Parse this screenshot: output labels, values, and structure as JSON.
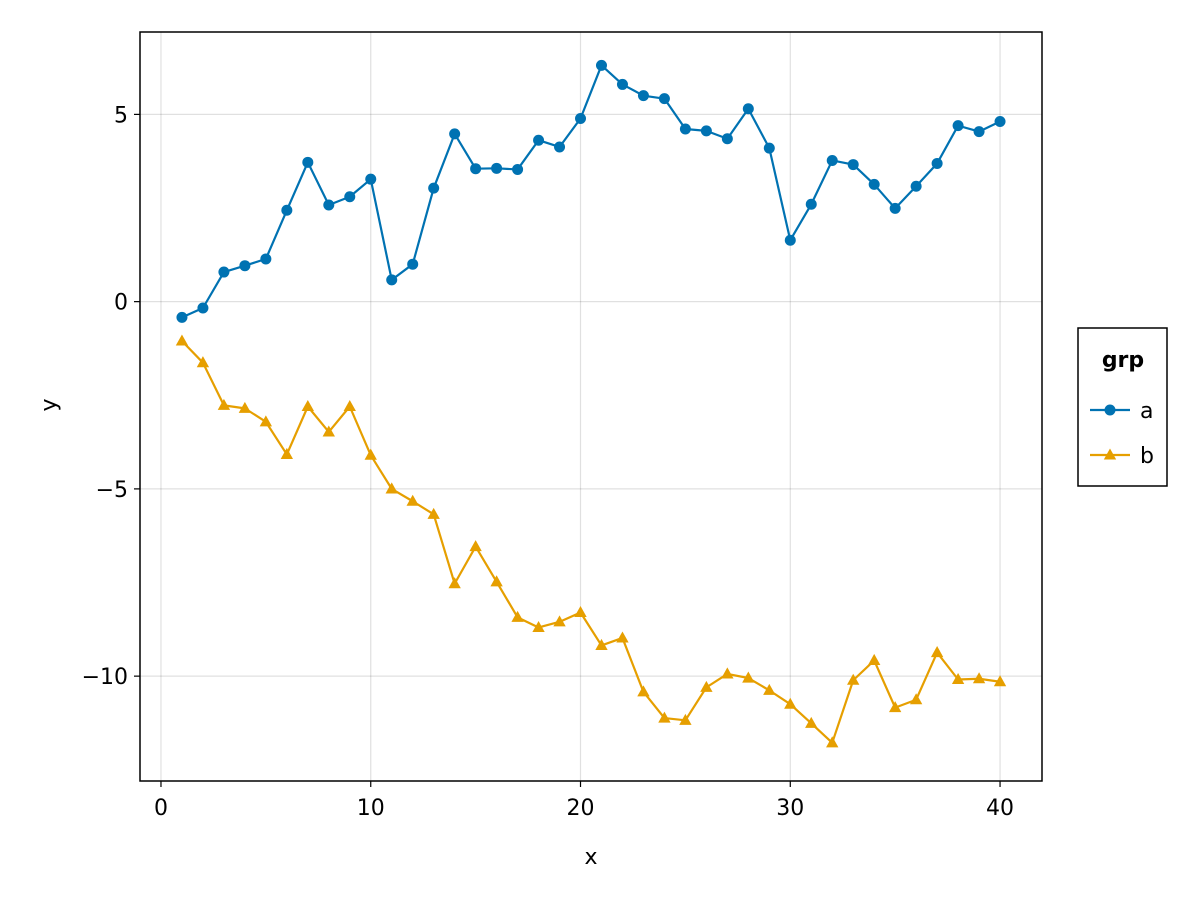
{
  "chart_data": {
    "type": "line",
    "title": "",
    "xlabel": "x",
    "ylabel": "y",
    "xlim": [
      -1,
      42
    ],
    "ylim": [
      -12.8,
      7.2
    ],
    "xticks": [
      0,
      10,
      20,
      30,
      40
    ],
    "yticks": [
      -10,
      -5,
      0,
      5
    ],
    "ytick_labels": [
      "−10",
      "−5",
      "0",
      "5"
    ],
    "grid": true,
    "legend": {
      "title": "grp",
      "placement": "right"
    },
    "x": [
      1,
      2,
      3,
      4,
      5,
      6,
      7,
      8,
      9,
      10,
      11,
      12,
      13,
      14,
      15,
      16,
      17,
      18,
      19,
      20,
      21,
      22,
      23,
      24,
      25,
      26,
      27,
      28,
      29,
      30,
      31,
      32,
      33,
      34,
      35,
      36,
      37,
      38,
      39,
      40
    ],
    "series": [
      {
        "name": "a",
        "color": "#0072b2",
        "marker": "circle",
        "values": [
          -0.42,
          -0.17,
          0.79,
          0.96,
          1.14,
          2.44,
          3.72,
          2.58,
          2.8,
          3.27,
          0.58,
          1.0,
          3.03,
          4.48,
          3.55,
          3.56,
          3.53,
          4.31,
          4.13,
          4.89,
          6.31,
          5.8,
          5.5,
          5.42,
          4.61,
          4.56,
          4.35,
          5.15,
          4.1,
          1.64,
          2.6,
          3.77,
          3.66,
          3.13,
          2.49,
          3.08,
          3.69,
          4.7,
          4.54,
          4.81
        ]
      },
      {
        "name": "b",
        "color": "#e69f00",
        "marker": "triangle",
        "values": [
          -1.05,
          -1.63,
          -2.77,
          -2.85,
          -3.21,
          -4.08,
          -2.8,
          -3.48,
          -2.8,
          -4.1,
          -5.0,
          -5.33,
          -5.68,
          -7.53,
          -6.54,
          -7.48,
          -8.43,
          -8.7,
          -8.55,
          -8.3,
          -9.18,
          -8.98,
          -10.42,
          -11.12,
          -11.18,
          -10.3,
          -9.94,
          -10.05,
          -10.38,
          -10.75,
          -11.26,
          -11.78,
          -10.11,
          -9.58,
          -10.84,
          -10.63,
          -9.37,
          -10.09,
          -10.07,
          -10.15
        ]
      }
    ]
  }
}
